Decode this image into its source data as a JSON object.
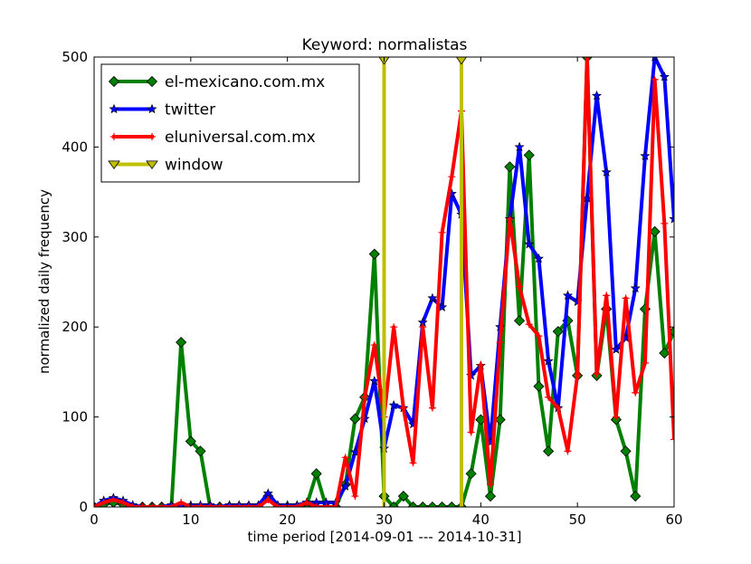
{
  "chart_data": {
    "type": "line",
    "title": "Keyword: normalistas",
    "xlabel": "time period [2014-09-01 --- 2014-10-31]",
    "ylabel": "normalized daily frequency",
    "xlim": [
      0,
      60
    ],
    "ylim": [
      0,
      500
    ],
    "xticks": [
      0,
      10,
      20,
      30,
      40,
      50,
      60
    ],
    "yticks": [
      0,
      100,
      200,
      300,
      400,
      500
    ],
    "grid": false,
    "legend_position": "top-left",
    "series": [
      {
        "name": "el-mexicano.com.mx",
        "color": "#008000",
        "marker": "diamond",
        "x": [
          0,
          1,
          2,
          3,
          4,
          5,
          6,
          7,
          8,
          9,
          10,
          11,
          12,
          13,
          14,
          15,
          16,
          17,
          18,
          19,
          20,
          21,
          22,
          23,
          24,
          25,
          26,
          27,
          28,
          29,
          30,
          31,
          32,
          33,
          34,
          35,
          36,
          37,
          38,
          39,
          40,
          41,
          42,
          43,
          44,
          45,
          46,
          47,
          48,
          49,
          50,
          51,
          52,
          53,
          54,
          55,
          56,
          57,
          58,
          59,
          60
        ],
        "values": [
          0,
          3,
          5,
          3,
          0,
          0,
          0,
          0,
          0,
          183,
          73,
          62,
          0,
          0,
          0,
          0,
          0,
          0,
          12,
          0,
          0,
          0,
          2,
          37,
          0,
          0,
          25,
          98,
          122,
          281,
          12,
          0,
          12,
          0,
          0,
          0,
          0,
          0,
          0,
          37,
          97,
          12,
          97,
          378,
          207,
          391,
          134,
          62,
          195,
          207,
          146,
          500,
          146,
          220,
          97,
          62,
          12,
          220,
          306,
          171,
          195
        ]
      },
      {
        "name": "twitter",
        "color": "#0000ff",
        "marker": "star",
        "x": [
          0,
          1,
          2,
          3,
          4,
          5,
          6,
          7,
          8,
          9,
          10,
          11,
          12,
          13,
          14,
          15,
          16,
          17,
          18,
          19,
          20,
          21,
          22,
          23,
          24,
          25,
          26,
          27,
          28,
          29,
          30,
          31,
          32,
          33,
          34,
          35,
          36,
          37,
          38,
          39,
          40,
          41,
          42,
          43,
          44,
          45,
          46,
          47,
          48,
          49,
          50,
          51,
          52,
          53,
          54,
          55,
          56,
          57,
          58,
          59,
          60
        ],
        "values": [
          0,
          7,
          10,
          7,
          2,
          0,
          0,
          0,
          2,
          2,
          2,
          2,
          2,
          0,
          2,
          2,
          2,
          2,
          15,
          2,
          2,
          2,
          5,
          5,
          5,
          5,
          23,
          61,
          98,
          140,
          65,
          113,
          110,
          92,
          205,
          232,
          222,
          348,
          325,
          146,
          157,
          72,
          200,
          320,
          400,
          292,
          276,
          162,
          110,
          235,
          228,
          343,
          457,
          372,
          175,
          188,
          243,
          390,
          500,
          478,
          320
        ]
      },
      {
        "name": "eluniversal.com.mx",
        "color": "#ff0000",
        "marker": "plus",
        "x": [
          0,
          1,
          2,
          3,
          4,
          5,
          6,
          7,
          8,
          9,
          10,
          11,
          12,
          13,
          14,
          15,
          16,
          17,
          18,
          19,
          20,
          21,
          22,
          23,
          24,
          25,
          26,
          27,
          28,
          29,
          30,
          31,
          32,
          33,
          34,
          35,
          36,
          37,
          38,
          39,
          40,
          41,
          42,
          43,
          44,
          45,
          46,
          47,
          48,
          49,
          50,
          51,
          52,
          53,
          54,
          55,
          56,
          57,
          58,
          59,
          60
        ],
        "values": [
          0,
          5,
          8,
          5,
          0,
          0,
          0,
          0,
          0,
          5,
          0,
          0,
          0,
          0,
          0,
          0,
          0,
          0,
          8,
          0,
          0,
          0,
          5,
          0,
          0,
          0,
          55,
          12,
          122,
          180,
          100,
          200,
          110,
          49,
          200,
          110,
          305,
          367,
          440,
          83,
          158,
          25,
          183,
          320,
          245,
          203,
          190,
          122,
          110,
          62,
          147,
          500,
          148,
          235,
          100,
          232,
          127,
          160,
          475,
          315,
          75
        ]
      },
      {
        "name": "window",
        "color": "#bfbf00",
        "marker": "triangle-down",
        "kind": "vertical-lines",
        "x": [
          30,
          38
        ]
      }
    ]
  }
}
